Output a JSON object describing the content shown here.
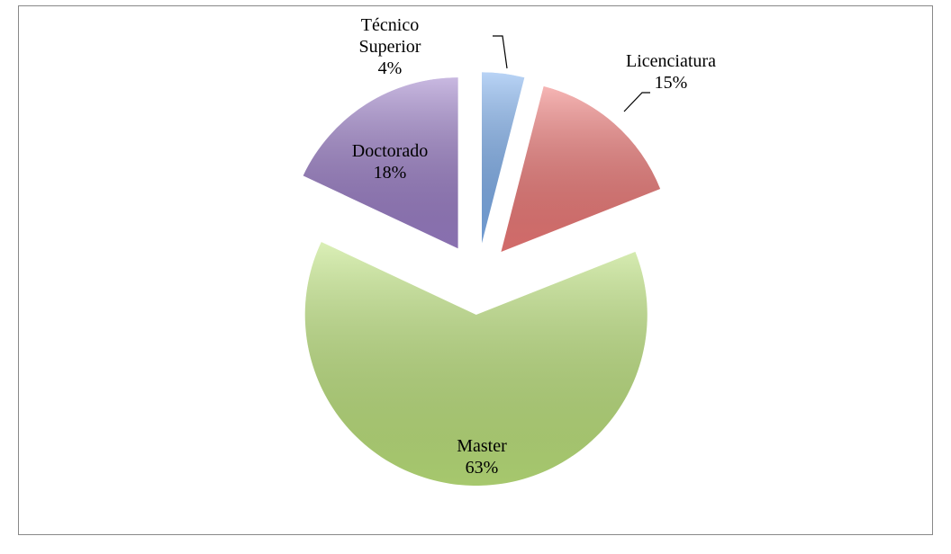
{
  "chart_data": {
    "type": "pie",
    "categories": [
      "Técnico Superior",
      "Licenciatura",
      "Master",
      "Doctorado"
    ],
    "values": [
      4,
      15,
      63,
      18
    ],
    "value_labels": [
      "4%",
      "15%",
      "63%",
      "18%"
    ],
    "colors": [
      "#7fb0ee",
      "#ef7a78",
      "#bde37c",
      "#9c7fc8"
    ]
  }
}
